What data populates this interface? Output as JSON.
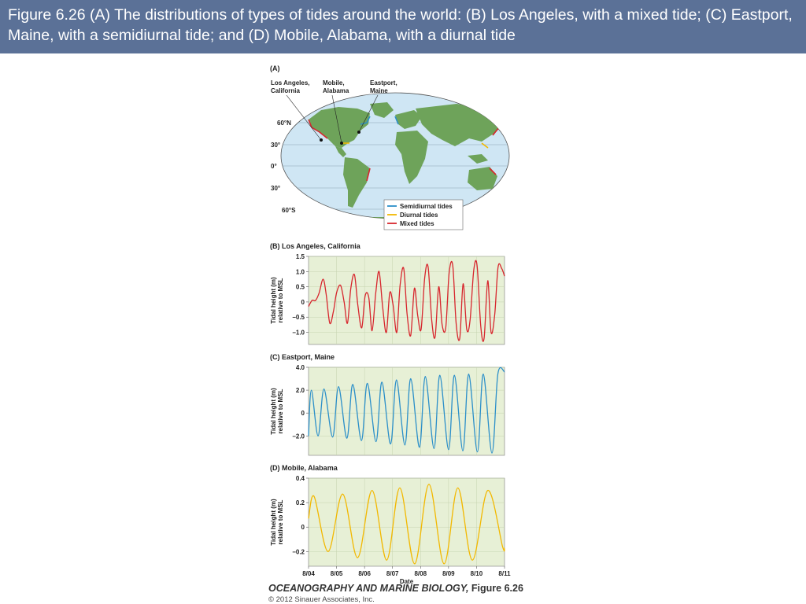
{
  "header": {
    "title": "Figure 6.26  (A) The distributions of types of tides around the world: (B) Los Angeles, with a mixed tide; (C) Eastport, Maine, with a semidiurnal tide; and (D) Mobile, Alabama, with a diurnal tide"
  },
  "map": {
    "panel_label": "(A)",
    "callouts": [
      {
        "line1": "Los Angeles,",
        "line2": "California"
      },
      {
        "line1": "Mobile,",
        "line2": "Alabama"
      },
      {
        "line1": "Eastport,",
        "line2": "Maine"
      }
    ],
    "latitude_labels": [
      "60°N",
      "30°",
      "0°",
      "30°",
      "60°S"
    ],
    "legend": [
      {
        "label": "Semidiurnal tides",
        "color": "#2b8fc9"
      },
      {
        "label": "Diurnal tides",
        "color": "#f2b800"
      },
      {
        "label": "Mixed tides",
        "color": "#d7262d"
      }
    ],
    "ocean_color": "#cfe6f4",
    "land_color": "#6ea35a"
  },
  "chart_data": [
    {
      "type": "line",
      "panel_label": "(B)",
      "title": "Los Angeles, California",
      "ylabel": [
        "Tidal height (m)",
        "relative to MSL"
      ],
      "ylim": [
        -1.4,
        1.5
      ],
      "yticks": [
        1.5,
        1.0,
        0.5,
        0,
        -0.5,
        -1.0
      ],
      "ytick_labels": [
        "1.5",
        "1.0",
        "0.5",
        "0",
        "−0.5",
        "−1.0"
      ],
      "color": "#d7262d",
      "series": [
        {
          "x": [
            0,
            0.125,
            0.25,
            0.38,
            0.52,
            0.63,
            0.76,
            0.89,
            1.0,
            1.14,
            1.27,
            1.39,
            1.51,
            1.64,
            1.76,
            1.9,
            2.02,
            2.15,
            2.27,
            2.4,
            2.52,
            2.65,
            2.78,
            2.9,
            3.02,
            3.15,
            3.27,
            3.4,
            3.52,
            3.65,
            3.78,
            3.9,
            4.02,
            4.15,
            4.27,
            4.4,
            4.52,
            4.65,
            4.77,
            4.9,
            5.02,
            5.15,
            5.27,
            5.4,
            5.52,
            5.65,
            5.77,
            5.9,
            6.02,
            6.15,
            6.27,
            6.4,
            6.52,
            6.65,
            6.77,
            6.9,
            7.0
          ],
          "y": [
            -0.15,
            0.05,
            0.05,
            0.3,
            0.75,
            0.25,
            -0.7,
            -0.3,
            0.3,
            0.55,
            0.0,
            -0.7,
            0.45,
            0.9,
            -0.1,
            -0.85,
            0.2,
            0.15,
            -0.95,
            0.3,
            1.0,
            -0.2,
            -1.0,
            0.3,
            -0.1,
            -1.0,
            0.55,
            1.1,
            -0.4,
            -1.1,
            0.45,
            -0.45,
            -0.9,
            0.8,
            1.15,
            -0.6,
            -1.15,
            0.5,
            -0.75,
            -0.85,
            0.95,
            1.2,
            -0.7,
            -1.2,
            0.6,
            -0.9,
            -0.6,
            1.05,
            1.2,
            -0.8,
            -1.2,
            0.7,
            -1.0,
            -0.4,
            1.15,
            1.1,
            0.85
          ]
        }
      ]
    },
    {
      "type": "line",
      "panel_label": "(C)",
      "title": "Eastport, Maine",
      "ylabel": [
        "Tidal height (m)",
        "relative to MSL"
      ],
      "ylim": [
        -3.7,
        4.0
      ],
      "yticks": [
        4.0,
        2.0,
        0,
        -2.0
      ],
      "ytick_labels": [
        "4.0",
        "2.0",
        "0",
        "−2.0"
      ],
      "color": "#2b8fc9",
      "series": [
        {
          "x": [
            0,
            0.1,
            0.34,
            0.55,
            0.86,
            1.07,
            1.37,
            1.58,
            1.89,
            2.1,
            2.41,
            2.62,
            2.93,
            3.14,
            3.44,
            3.65,
            3.96,
            4.17,
            4.48,
            4.69,
            5.0,
            5.21,
            5.51,
            5.72,
            6.03,
            6.24,
            6.55,
            6.76,
            7.0
          ],
          "y": [
            -2.0,
            2.0,
            -2.0,
            2.1,
            -2.1,
            2.3,
            -2.2,
            2.5,
            -2.4,
            2.6,
            -2.5,
            2.7,
            -2.7,
            2.9,
            -2.8,
            3.0,
            -3.0,
            3.2,
            -3.1,
            3.3,
            -3.2,
            3.3,
            -3.3,
            3.4,
            -3.4,
            3.4,
            -3.5,
            3.4,
            3.6
          ]
        }
      ]
    },
    {
      "type": "line",
      "panel_label": "(D)",
      "title": "Mobile, Alabama",
      "ylabel": [
        "Tidal height (m)",
        "relative to MSL"
      ],
      "ylim": [
        -0.32,
        0.4
      ],
      "yticks": [
        0.4,
        0.2,
        0,
        -0.2
      ],
      "ytick_labels": [
        "0.4",
        "0.2",
        "0",
        "−0.2"
      ],
      "color": "#f2b800",
      "xticks": [
        0,
        1,
        2,
        3,
        4,
        5,
        6,
        7
      ],
      "xtick_labels": [
        "8/04",
        "8/05",
        "8/06",
        "8/07",
        "8/08",
        "8/09",
        "8/10",
        "8/11"
      ],
      "xlabel": "Date",
      "series": [
        {
          "x": [
            0,
            0.2,
            0.7,
            1.22,
            1.75,
            2.27,
            2.79,
            3.26,
            3.79,
            4.3,
            4.84,
            5.33,
            5.85,
            6.4,
            6.93,
            7.0
          ],
          "y": [
            0.07,
            0.25,
            -0.2,
            0.27,
            -0.25,
            0.3,
            -0.27,
            0.32,
            -0.3,
            0.35,
            -0.3,
            0.32,
            -0.27,
            0.3,
            -0.16,
            -0.17
          ]
        }
      ]
    }
  ],
  "footer": {
    "title": "OCEANOGRAPHY AND MARINE BIOLOGY,",
    "figure": " Figure 6.26",
    "copyright": "© 2012 Sinauer Associates, Inc."
  }
}
